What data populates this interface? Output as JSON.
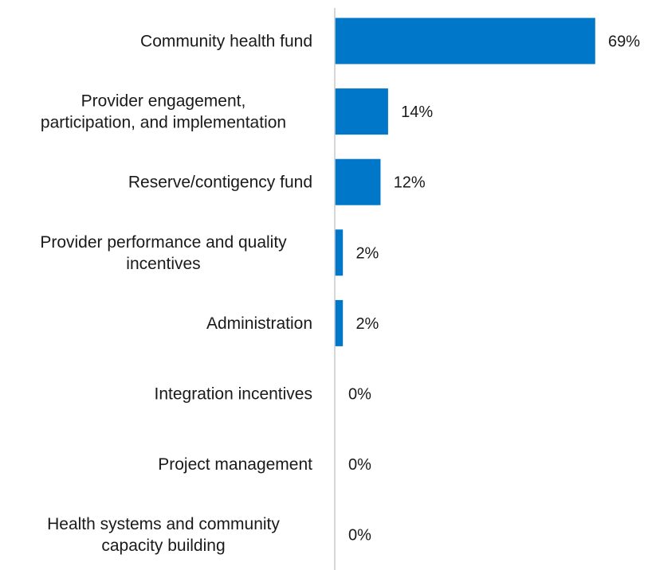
{
  "chart_data": {
    "type": "bar",
    "orientation": "horizontal",
    "title": "",
    "xlabel": "",
    "ylabel": "",
    "categories": [
      [
        "Community health fund"
      ],
      [
        "Provider engagement,",
        "participation, and implementation"
      ],
      [
        "Reserve/contigency fund"
      ],
      [
        "Provider performance and quality",
        "incentives"
      ],
      [
        "Administration"
      ],
      [
        "Integration incentives"
      ],
      [
        "Project management"
      ],
      [
        "Health systems and community",
        "capacity building"
      ]
    ],
    "values": [
      69,
      14,
      12,
      2,
      2,
      0,
      0,
      0
    ],
    "value_labels": [
      "69%",
      "14%",
      "12%",
      "2%",
      "2%",
      "0%",
      "0%",
      "0%"
    ],
    "unit": "%",
    "xlim": [
      0,
      69
    ],
    "grid": false,
    "legend": "none",
    "colors": {
      "bar": "#0077c8",
      "axis": "#c8c8c8",
      "text": "#1a1a1a"
    }
  }
}
